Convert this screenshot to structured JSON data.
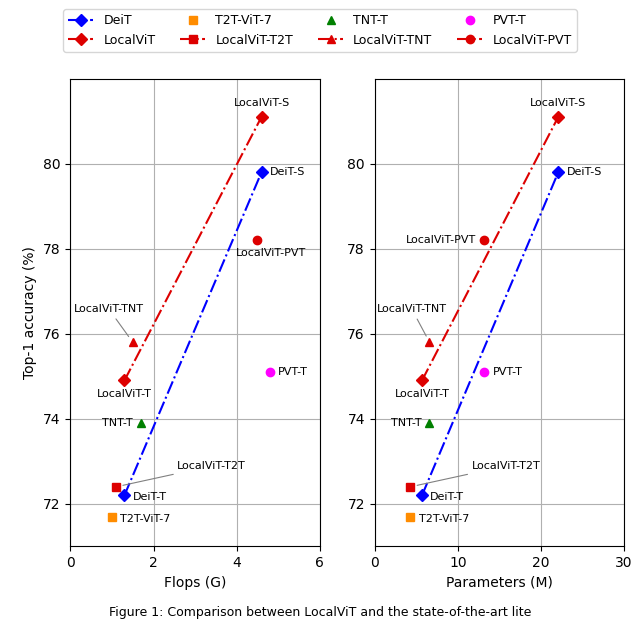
{
  "caption": "Figure 1: Comparison between LocalViT and the state-of-the-art lite",
  "chart_data": [
    {
      "type": "scatter",
      "x_label": "Flops (G)",
      "y_label": "Top-1 accuracy (%)",
      "xlim": [
        0,
        6
      ],
      "xticks": [
        0,
        2,
        4,
        6
      ],
      "ylim": [
        71,
        82
      ],
      "yticks": [
        72,
        74,
        76,
        78,
        80
      ],
      "grid": true,
      "legend": "upper center",
      "series": [
        {
          "name": "DeiT",
          "color": "#0000ff",
          "marker": "diamond",
          "line_style": "dashdot",
          "x": [
            1.3,
            4.6
          ],
          "values": [
            72.2,
            79.8
          ],
          "point_labels": [
            "DeiT-T",
            "DeiT-S"
          ]
        },
        {
          "name": "T2T-ViT-7",
          "color": "#ff8c00",
          "marker": "square",
          "line_style": "none",
          "x": [
            1.0
          ],
          "values": [
            71.7
          ],
          "point_labels": [
            "T2T-ViT-7"
          ]
        },
        {
          "name": "TNT-T",
          "color": "#008000",
          "marker": "triangle",
          "line_style": "none",
          "x": [
            1.7
          ],
          "values": [
            73.9
          ],
          "point_labels": [
            "TNT-T"
          ]
        },
        {
          "name": "PVT-T",
          "color": "#ff00ff",
          "marker": "circle",
          "line_style": "none",
          "x": [
            4.8
          ],
          "values": [
            75.1
          ],
          "point_labels": [
            "PVT-T"
          ]
        },
        {
          "name": "LocalViT",
          "color": "#dd0000",
          "marker": "diamond",
          "line_style": "dashdot",
          "x": [
            1.3,
            4.6
          ],
          "values": [
            74.9,
            81.1
          ],
          "point_labels": [
            "LocalViT-T",
            "LocalViT-S"
          ]
        },
        {
          "name": "LocalViT-T2T",
          "color": "#dd0000",
          "marker": "square",
          "line_style": "dashdot",
          "x": [
            1.1
          ],
          "values": [
            72.4
          ],
          "point_labels": [
            "LocalViT-T2T"
          ]
        },
        {
          "name": "LocalViT-TNT",
          "color": "#dd0000",
          "marker": "triangle",
          "line_style": "dashdot",
          "x": [
            1.5
          ],
          "values": [
            75.8
          ],
          "point_labels": [
            "LocalViT-TNT"
          ]
        },
        {
          "name": "LocalViT-PVT",
          "color": "#dd0000",
          "marker": "circle",
          "line_style": "dashdot",
          "x": [
            4.5
          ],
          "values": [
            78.2
          ],
          "point_labels": [
            "LocalViT-PVT"
          ]
        }
      ]
    },
    {
      "type": "scatter",
      "x_label": "Parameters (M)",
      "xlim": [
        0,
        30
      ],
      "xticks": [
        0,
        10,
        20,
        30
      ],
      "ylim": [
        71,
        82
      ],
      "yticks": [
        72,
        74,
        76,
        78,
        80
      ],
      "grid": true,
      "series": [
        {
          "name": "DeiT",
          "color": "#0000ff",
          "marker": "diamond",
          "line_style": "dashdot",
          "x": [
            5.7,
            22.1
          ],
          "values": [
            72.2,
            79.8
          ],
          "point_labels": [
            "DeiT-T",
            "DeiT-S"
          ]
        },
        {
          "name": "T2T-ViT-7",
          "color": "#ff8c00",
          "marker": "square",
          "line_style": "none",
          "x": [
            4.3
          ],
          "values": [
            71.7
          ],
          "point_labels": [
            "T2T-ViT-7"
          ]
        },
        {
          "name": "TNT-T",
          "color": "#008000",
          "marker": "triangle",
          "line_style": "none",
          "x": [
            6.6
          ],
          "values": [
            73.9
          ],
          "point_labels": [
            "TNT-T"
          ]
        },
        {
          "name": "PVT-T",
          "color": "#ff00ff",
          "marker": "circle",
          "line_style": "none",
          "x": [
            13.2
          ],
          "values": [
            75.1
          ],
          "point_labels": [
            "PVT-T"
          ]
        },
        {
          "name": "LocalViT",
          "color": "#dd0000",
          "marker": "diamond",
          "line_style": "dashdot",
          "x": [
            5.7,
            22.1
          ],
          "values": [
            74.9,
            81.1
          ],
          "point_labels": [
            "LocalViT-T",
            "LocalViT-S"
          ]
        },
        {
          "name": "LocalViT-T2T",
          "color": "#dd0000",
          "marker": "square",
          "line_style": "dashdot",
          "x": [
            4.3
          ],
          "values": [
            72.4
          ],
          "point_labels": [
            "LocalViT-T2T"
          ]
        },
        {
          "name": "LocalViT-TNT",
          "color": "#dd0000",
          "marker": "triangle",
          "line_style": "dashdot",
          "x": [
            6.6
          ],
          "values": [
            75.8
          ],
          "point_labels": [
            "LocalViT-TNT"
          ]
        },
        {
          "name": "LocalViT-PVT",
          "color": "#dd0000",
          "marker": "circle",
          "line_style": "dashdot",
          "x": [
            13.2
          ],
          "values": [
            78.2
          ],
          "point_labels": [
            "LocalViT-PVT"
          ]
        }
      ]
    }
  ]
}
